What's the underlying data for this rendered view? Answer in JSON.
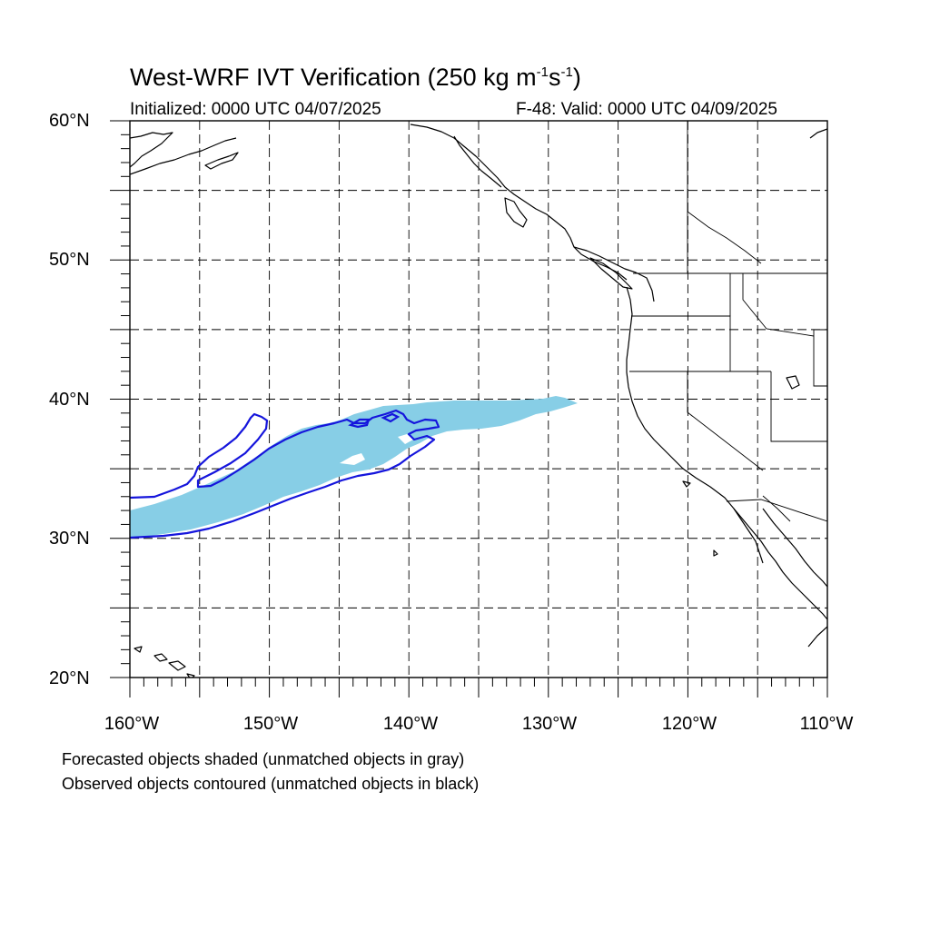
{
  "title": {
    "main": "West-WRF IVT Verification (250 kg m",
    "sup1": "-1",
    "mid": "s",
    "sup2": "-1",
    "end": ")"
  },
  "subtitle_left": "Initialized: 0000 UTC 04/07/2025",
  "subtitle_right": "F-48: Valid: 0000 UTC 04/09/2025",
  "y_labels": [
    "60°N",
    "50°N",
    "40°N",
    "30°N",
    "20°N"
  ],
  "x_labels": [
    "160°W",
    "150°W",
    "140°W",
    "130°W",
    "120°W",
    "110°W"
  ],
  "notes": [
    "Forecasted objects shaded (unmatched objects in gray)",
    "Observed objects contoured (unmatched objects in black)"
  ],
  "map": {
    "lon_range": [
      -160,
      -110
    ],
    "lat_range": [
      20,
      60
    ],
    "grid_lon_step": 5,
    "grid_lat_step": 5,
    "grid": "dashed",
    "forecast_fill_color": "#87CEE6",
    "observed_contour_color": "#1515DC"
  }
}
